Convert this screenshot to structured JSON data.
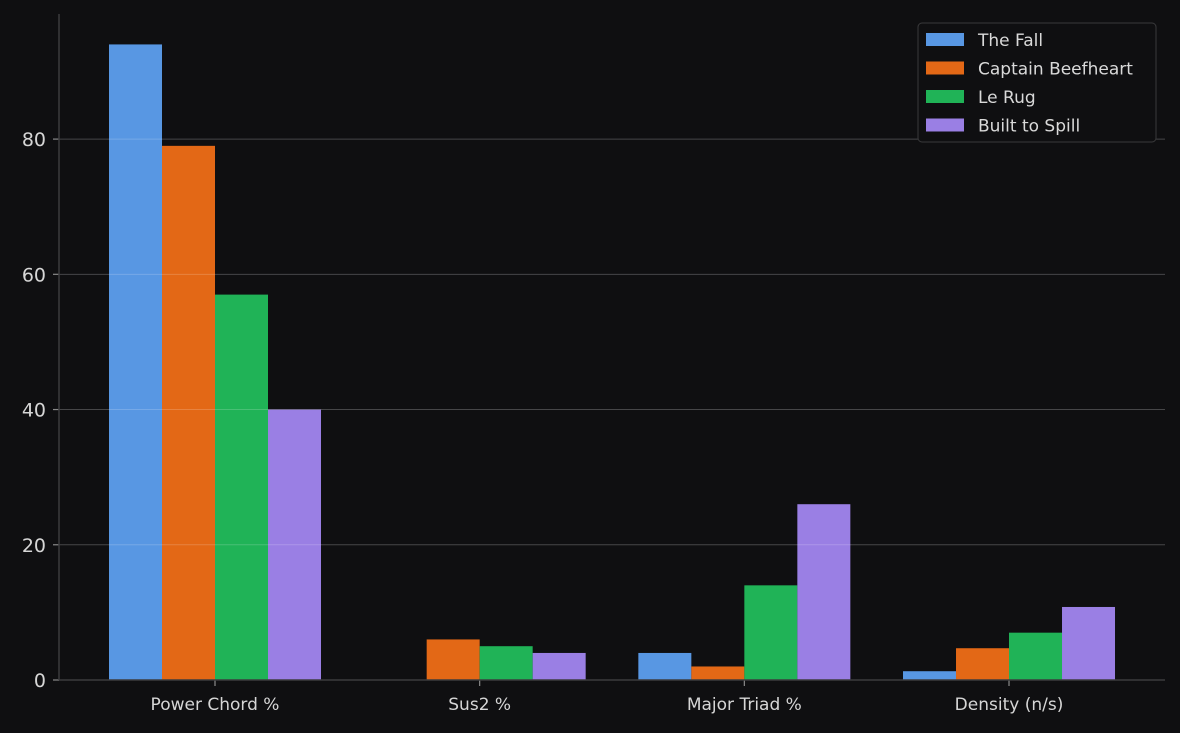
{
  "chart_data": {
    "type": "bar",
    "title": "",
    "xlabel": "",
    "ylabel": "",
    "categories": [
      "Power Chord %",
      "Sus2 %",
      "Major Triad %",
      "Density (n/s)"
    ],
    "series": [
      {
        "name": "The Fall",
        "color": "#5897e3",
        "values": [
          94,
          0,
          4,
          1.3
        ]
      },
      {
        "name": "Captain Beefheart",
        "color": "#e36816",
        "values": [
          79,
          6,
          2,
          4.7
        ]
      },
      {
        "name": "Le Rug",
        "color": "#20b357",
        "values": [
          57,
          5,
          14,
          7
        ]
      },
      {
        "name": "Built to Spill",
        "color": "#9a7fe4",
        "values": [
          40,
          4,
          26,
          10.8
        ]
      }
    ],
    "ylim": [
      0,
      98.5
    ],
    "yticks": [
      0,
      20,
      40,
      60,
      80
    ],
    "grid": true,
    "legend_position": "top-right",
    "colors": {
      "background": "#0f0f11",
      "axis": "#3c3c3e",
      "grid": "#1e1e20",
      "text": "#d6d6d6"
    }
  }
}
